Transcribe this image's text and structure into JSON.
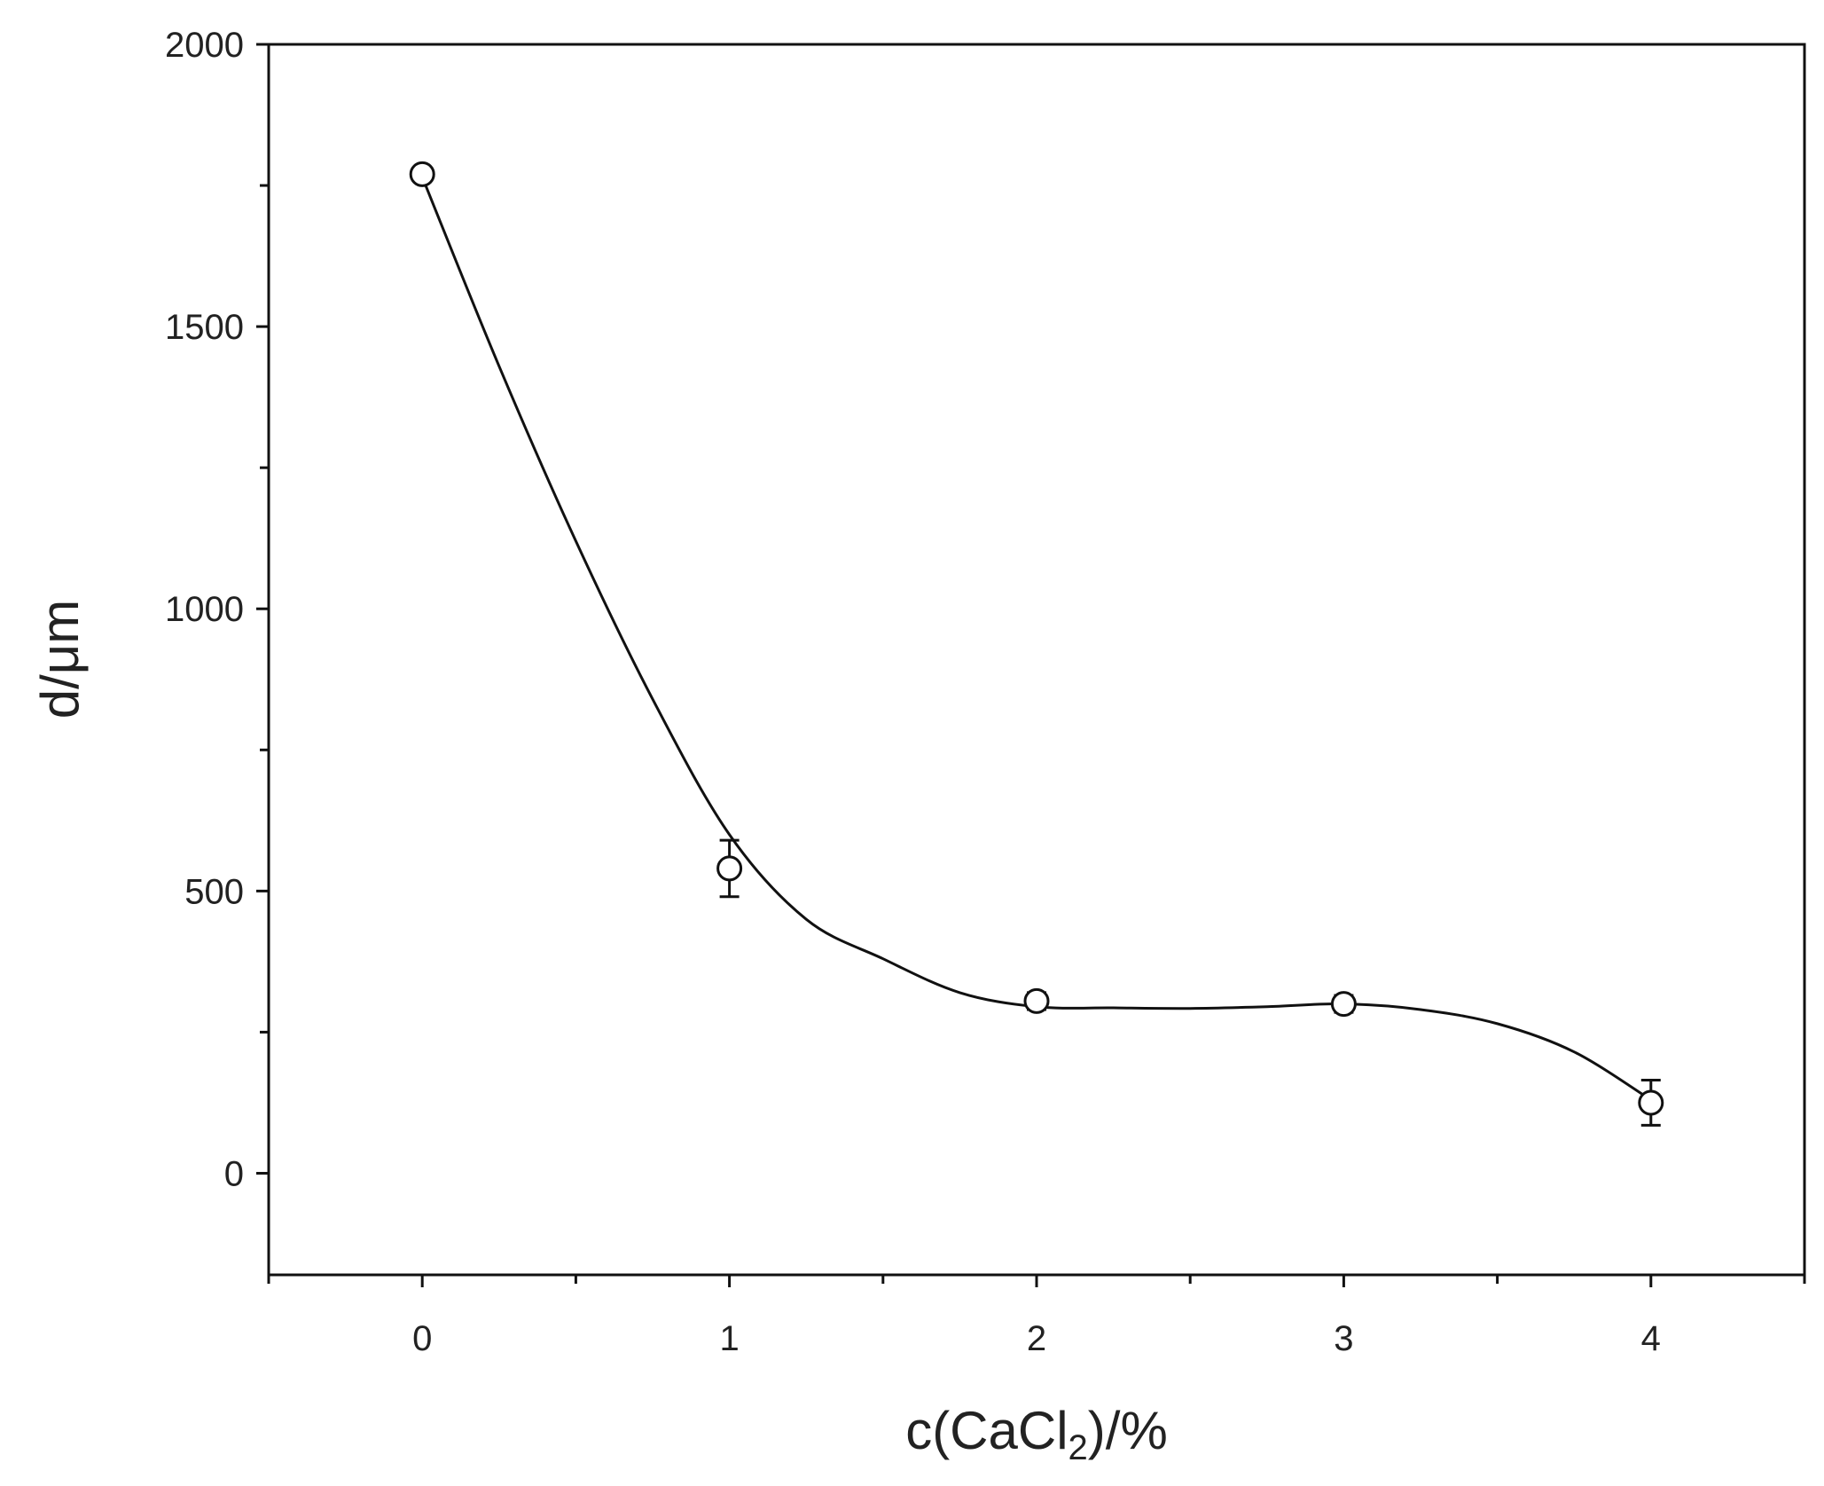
{
  "chart_data": {
    "type": "scatter",
    "xlabel": {
      "base": "c(CaCl",
      "sub": "2",
      "tail": ")/%"
    },
    "ylabel": "d/μm",
    "xlim": [
      -0.5,
      4.5
    ],
    "ylim": [
      -180,
      2000
    ],
    "x_ticks": [
      0,
      1,
      2,
      3,
      4
    ],
    "y_ticks": [
      0,
      500,
      1000,
      1500,
      2000
    ],
    "grid": false,
    "legend": "none",
    "colors": {
      "marker": "#111111",
      "line": "#111111",
      "axis": "#111111"
    },
    "series": [
      {
        "x": [
          0,
          1,
          2,
          3,
          4
        ],
        "y": [
          1770,
          540,
          305,
          300,
          125
        ],
        "error": [
          10,
          50,
          15,
          15,
          40
        ],
        "fit_curve": {
          "x": [
            0,
            0.25,
            0.5,
            0.75,
            1.0,
            1.25,
            1.5,
            1.75,
            2.0,
            2.25,
            2.5,
            2.75,
            3.0,
            3.25,
            3.5,
            3.75,
            4.0
          ],
          "y": [
            1765,
            1430,
            1120,
            840,
            600,
            450,
            380,
            320,
            295,
            293,
            292,
            295,
            300,
            290,
            265,
            215,
            130
          ]
        }
      }
    ]
  }
}
